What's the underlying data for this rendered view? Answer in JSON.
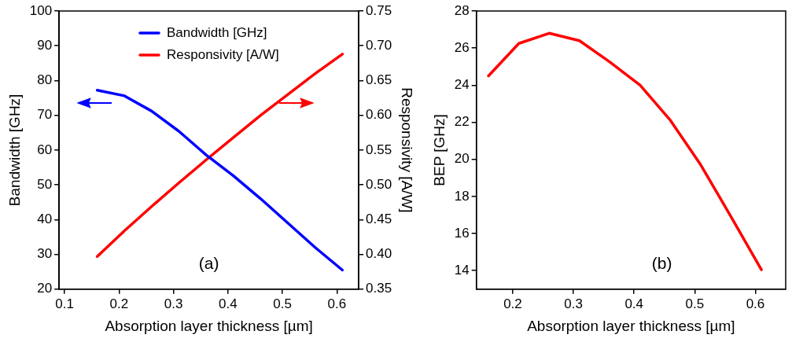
{
  "chart_data": [
    {
      "type": "line",
      "xlabel": "Absorption layer thickness [µm]",
      "ylabel": "Bandwidth [GHz]",
      "y2label": "Responsivity [A/W]",
      "x": [
        0.16,
        0.21,
        0.26,
        0.31,
        0.36,
        0.41,
        0.46,
        0.51,
        0.56,
        0.61
      ],
      "series": [
        {
          "name": "Bandwidth [GHz]",
          "color": "#0000ff",
          "values": [
            77.2,
            75.6,
            71.2,
            65.4,
            58.6,
            52.6,
            46,
            39,
            32,
            25.5
          ]
        },
        {
          "name": "Responsivity [A/W]",
          "color": "#ff0000",
          "axis": "y2",
          "values": [
            0.397,
            0.434,
            0.469,
            0.503,
            0.536,
            0.568,
            0.6,
            0.63,
            0.66,
            0.688
          ]
        }
      ],
      "xlim": [
        0.09,
        0.64
      ],
      "xticks": [
        0.1,
        0.2,
        0.3,
        0.4,
        0.5,
        0.6
      ],
      "ylim": [
        20,
        100
      ],
      "yticks": [
        20,
        30,
        40,
        50,
        60,
        70,
        80,
        90,
        100
      ],
      "y2lim": [
        0.35,
        0.75
      ],
      "y2ticks": [
        {
          "value": 0.35,
          "label": "0.35"
        },
        {
          "value": 0.4,
          "label": "0.40"
        },
        {
          "value": 0.45,
          "label": "0.45"
        },
        {
          "value": 0.5,
          "label": "0.50"
        },
        {
          "value": 0.55,
          "label": "0.55"
        },
        {
          "value": 0.6,
          "label": "0.60"
        },
        {
          "value": 0.65,
          "label": "0.65"
        },
        {
          "value": 0.7,
          "label": "0.70"
        },
        {
          "value": 0.75,
          "label": "0.75"
        }
      ],
      "annotations": [
        "(a)"
      ],
      "legend": "top",
      "grid": false,
      "marker": "none",
      "line_style": "solid"
    },
    {
      "type": "line",
      "xlabel": "Absorption layer thickness [µm]",
      "ylabel": "BEP [GHz]",
      "x": [
        0.16,
        0.21,
        0.26,
        0.31,
        0.36,
        0.41,
        0.46,
        0.51,
        0.56,
        0.61
      ],
      "series": [
        {
          "color": "#ff0000",
          "values": [
            24.5,
            26.25,
            26.8,
            26.4,
            25.25,
            24.0,
            22.1,
            19.7,
            16.9,
            14.05
          ]
        }
      ],
      "xlim": [
        0.14,
        0.65
      ],
      "xticks": [
        0.2,
        0.3,
        0.4,
        0.5,
        0.6
      ],
      "ylim": [
        13,
        28
      ],
      "yticks": [
        14,
        16,
        18,
        20,
        22,
        24,
        26,
        28
      ],
      "annotations": [
        "(b)"
      ],
      "legend": false,
      "grid": false,
      "marker": "none",
      "line_style": "solid"
    }
  ]
}
